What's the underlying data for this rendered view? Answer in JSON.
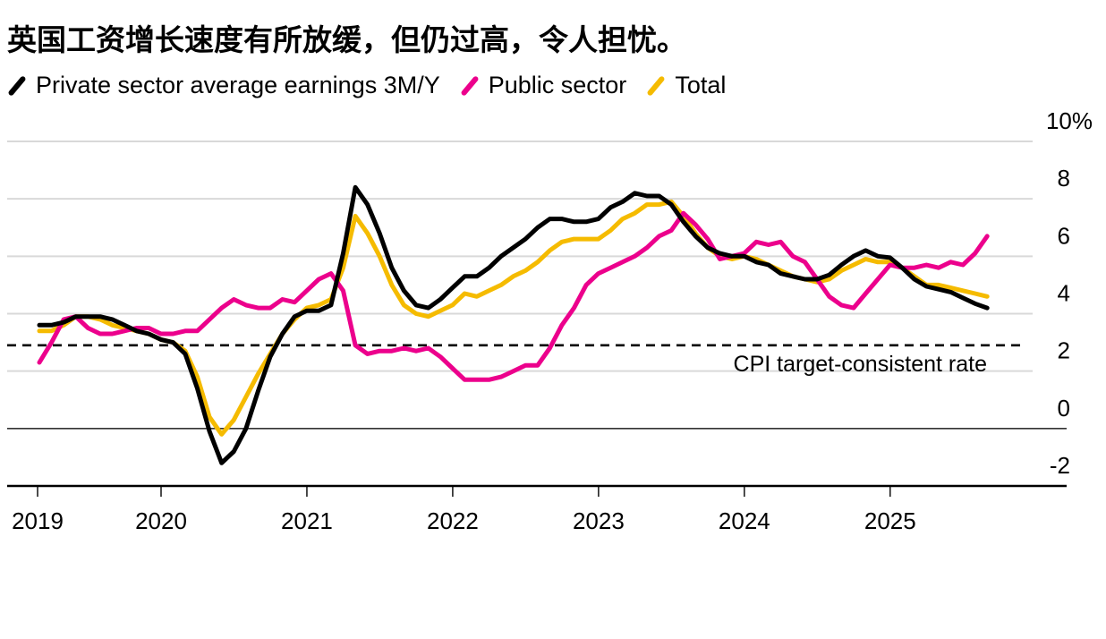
{
  "title": "英国工资增长速度有所放缓，但仍过高，令人担忧。",
  "legend": [
    {
      "label": "Private sector average earnings 3M/Y",
      "color": "#000000"
    },
    {
      "label": "Public sector",
      "color": "#ec008c"
    },
    {
      "label": "Total",
      "color": "#f5bb00"
    }
  ],
  "chart_data": {
    "type": "line",
    "title": "英国工资增长速度有所放缓，但仍过高，令人担忧。",
    "xlabel": "",
    "ylabel": "",
    "y_unit": "%",
    "ylim": [
      -2,
      10
    ],
    "yticks": [
      {
        "value": 10,
        "label": "10%"
      },
      {
        "value": 8,
        "label": "8"
      },
      {
        "value": 6,
        "label": "6"
      },
      {
        "value": 4,
        "label": "4"
      },
      {
        "value": 2,
        "label": "2"
      },
      {
        "value": 0,
        "label": "0"
      },
      {
        "value": -2,
        "label": "-2"
      }
    ],
    "xticks": [
      {
        "month_index": 0,
        "label": "2019"
      },
      {
        "month_index": 10,
        "label": "2020"
      },
      {
        "month_index": 22,
        "label": "2021"
      },
      {
        "month_index": 34,
        "label": "2022"
      },
      {
        "month_index": 46,
        "label": "2023"
      },
      {
        "month_index": 58,
        "label": "2024"
      },
      {
        "month_index": 70,
        "label": "2025"
      }
    ],
    "x_start": "2019-03",
    "x_end": "2025-09",
    "x_range_months": [
      0,
      82
    ],
    "grid": true,
    "legend_position": "top-left",
    "reference_line": {
      "value": 2.9,
      "label": "CPI target-consistent rate",
      "style": "dashed"
    },
    "series": [
      {
        "name": "Private sector average earnings 3M/Y",
        "color": "#000000",
        "values": [
          3.6,
          3.6,
          3.7,
          3.9,
          3.9,
          3.9,
          3.8,
          3.6,
          3.4,
          3.3,
          3.1,
          3.0,
          2.6,
          1.4,
          -0.1,
          -1.2,
          -0.8,
          0.0,
          1.3,
          2.5,
          3.3,
          3.9,
          4.1,
          4.1,
          4.3,
          6.1,
          8.4,
          7.8,
          6.8,
          5.6,
          4.8,
          4.3,
          4.2,
          4.5,
          4.9,
          5.3,
          5.3,
          5.6,
          6.0,
          6.3,
          6.6,
          7.0,
          7.3,
          7.3,
          7.2,
          7.2,
          7.3,
          7.7,
          7.9,
          8.2,
          8.1,
          8.1,
          7.8,
          7.2,
          6.7,
          6.3,
          6.1,
          6.0,
          6.0,
          5.8,
          5.7,
          5.4,
          5.3,
          5.2,
          5.2,
          5.35,
          5.7,
          6.0,
          6.2,
          6.0,
          5.95,
          5.6,
          5.2,
          4.95,
          4.85,
          4.75,
          4.55,
          4.35,
          4.2
        ]
      },
      {
        "name": "Public sector",
        "color": "#ec008c",
        "values": [
          2.3,
          3.0,
          3.8,
          3.9,
          3.5,
          3.3,
          3.3,
          3.4,
          3.5,
          3.5,
          3.3,
          3.3,
          3.4,
          3.4,
          3.8,
          4.2,
          4.5,
          4.3,
          4.2,
          4.2,
          4.5,
          4.4,
          4.8,
          5.2,
          5.4,
          4.8,
          2.9,
          2.6,
          2.7,
          2.7,
          2.8,
          2.7,
          2.8,
          2.5,
          2.1,
          1.7,
          1.7,
          1.7,
          1.8,
          2.0,
          2.2,
          2.2,
          2.8,
          3.6,
          4.2,
          5.0,
          5.4,
          5.6,
          5.8,
          6.0,
          6.3,
          6.7,
          6.9,
          7.5,
          7.1,
          6.6,
          5.9,
          6.0,
          6.1,
          6.5,
          6.4,
          6.5,
          6.0,
          5.8,
          5.2,
          4.6,
          4.3,
          4.2,
          4.7,
          5.2,
          5.7,
          5.6,
          5.6,
          5.7,
          5.6,
          5.8,
          5.7,
          6.1,
          6.7
        ]
      },
      {
        "name": "Total",
        "color": "#f5bb00",
        "values": [
          3.4,
          3.4,
          3.6,
          3.9,
          3.9,
          3.8,
          3.6,
          3.5,
          3.4,
          3.3,
          3.1,
          3.0,
          2.7,
          1.8,
          0.4,
          -0.2,
          0.3,
          1.1,
          1.9,
          2.6,
          3.3,
          3.8,
          4.2,
          4.3,
          4.5,
          5.6,
          7.4,
          6.8,
          6.0,
          5.0,
          4.3,
          4.0,
          3.9,
          4.1,
          4.3,
          4.7,
          4.6,
          4.8,
          5.0,
          5.3,
          5.5,
          5.8,
          6.2,
          6.5,
          6.6,
          6.6,
          6.6,
          6.9,
          7.3,
          7.5,
          7.8,
          7.8,
          7.9,
          7.4,
          6.8,
          6.3,
          6.0,
          5.9,
          6.0,
          5.9,
          5.7,
          5.5,
          5.3,
          5.2,
          5.1,
          5.2,
          5.5,
          5.7,
          5.9,
          5.8,
          5.8,
          5.6,
          5.3,
          5.0,
          5.0,
          4.9,
          4.8,
          4.7,
          4.6
        ]
      }
    ]
  }
}
